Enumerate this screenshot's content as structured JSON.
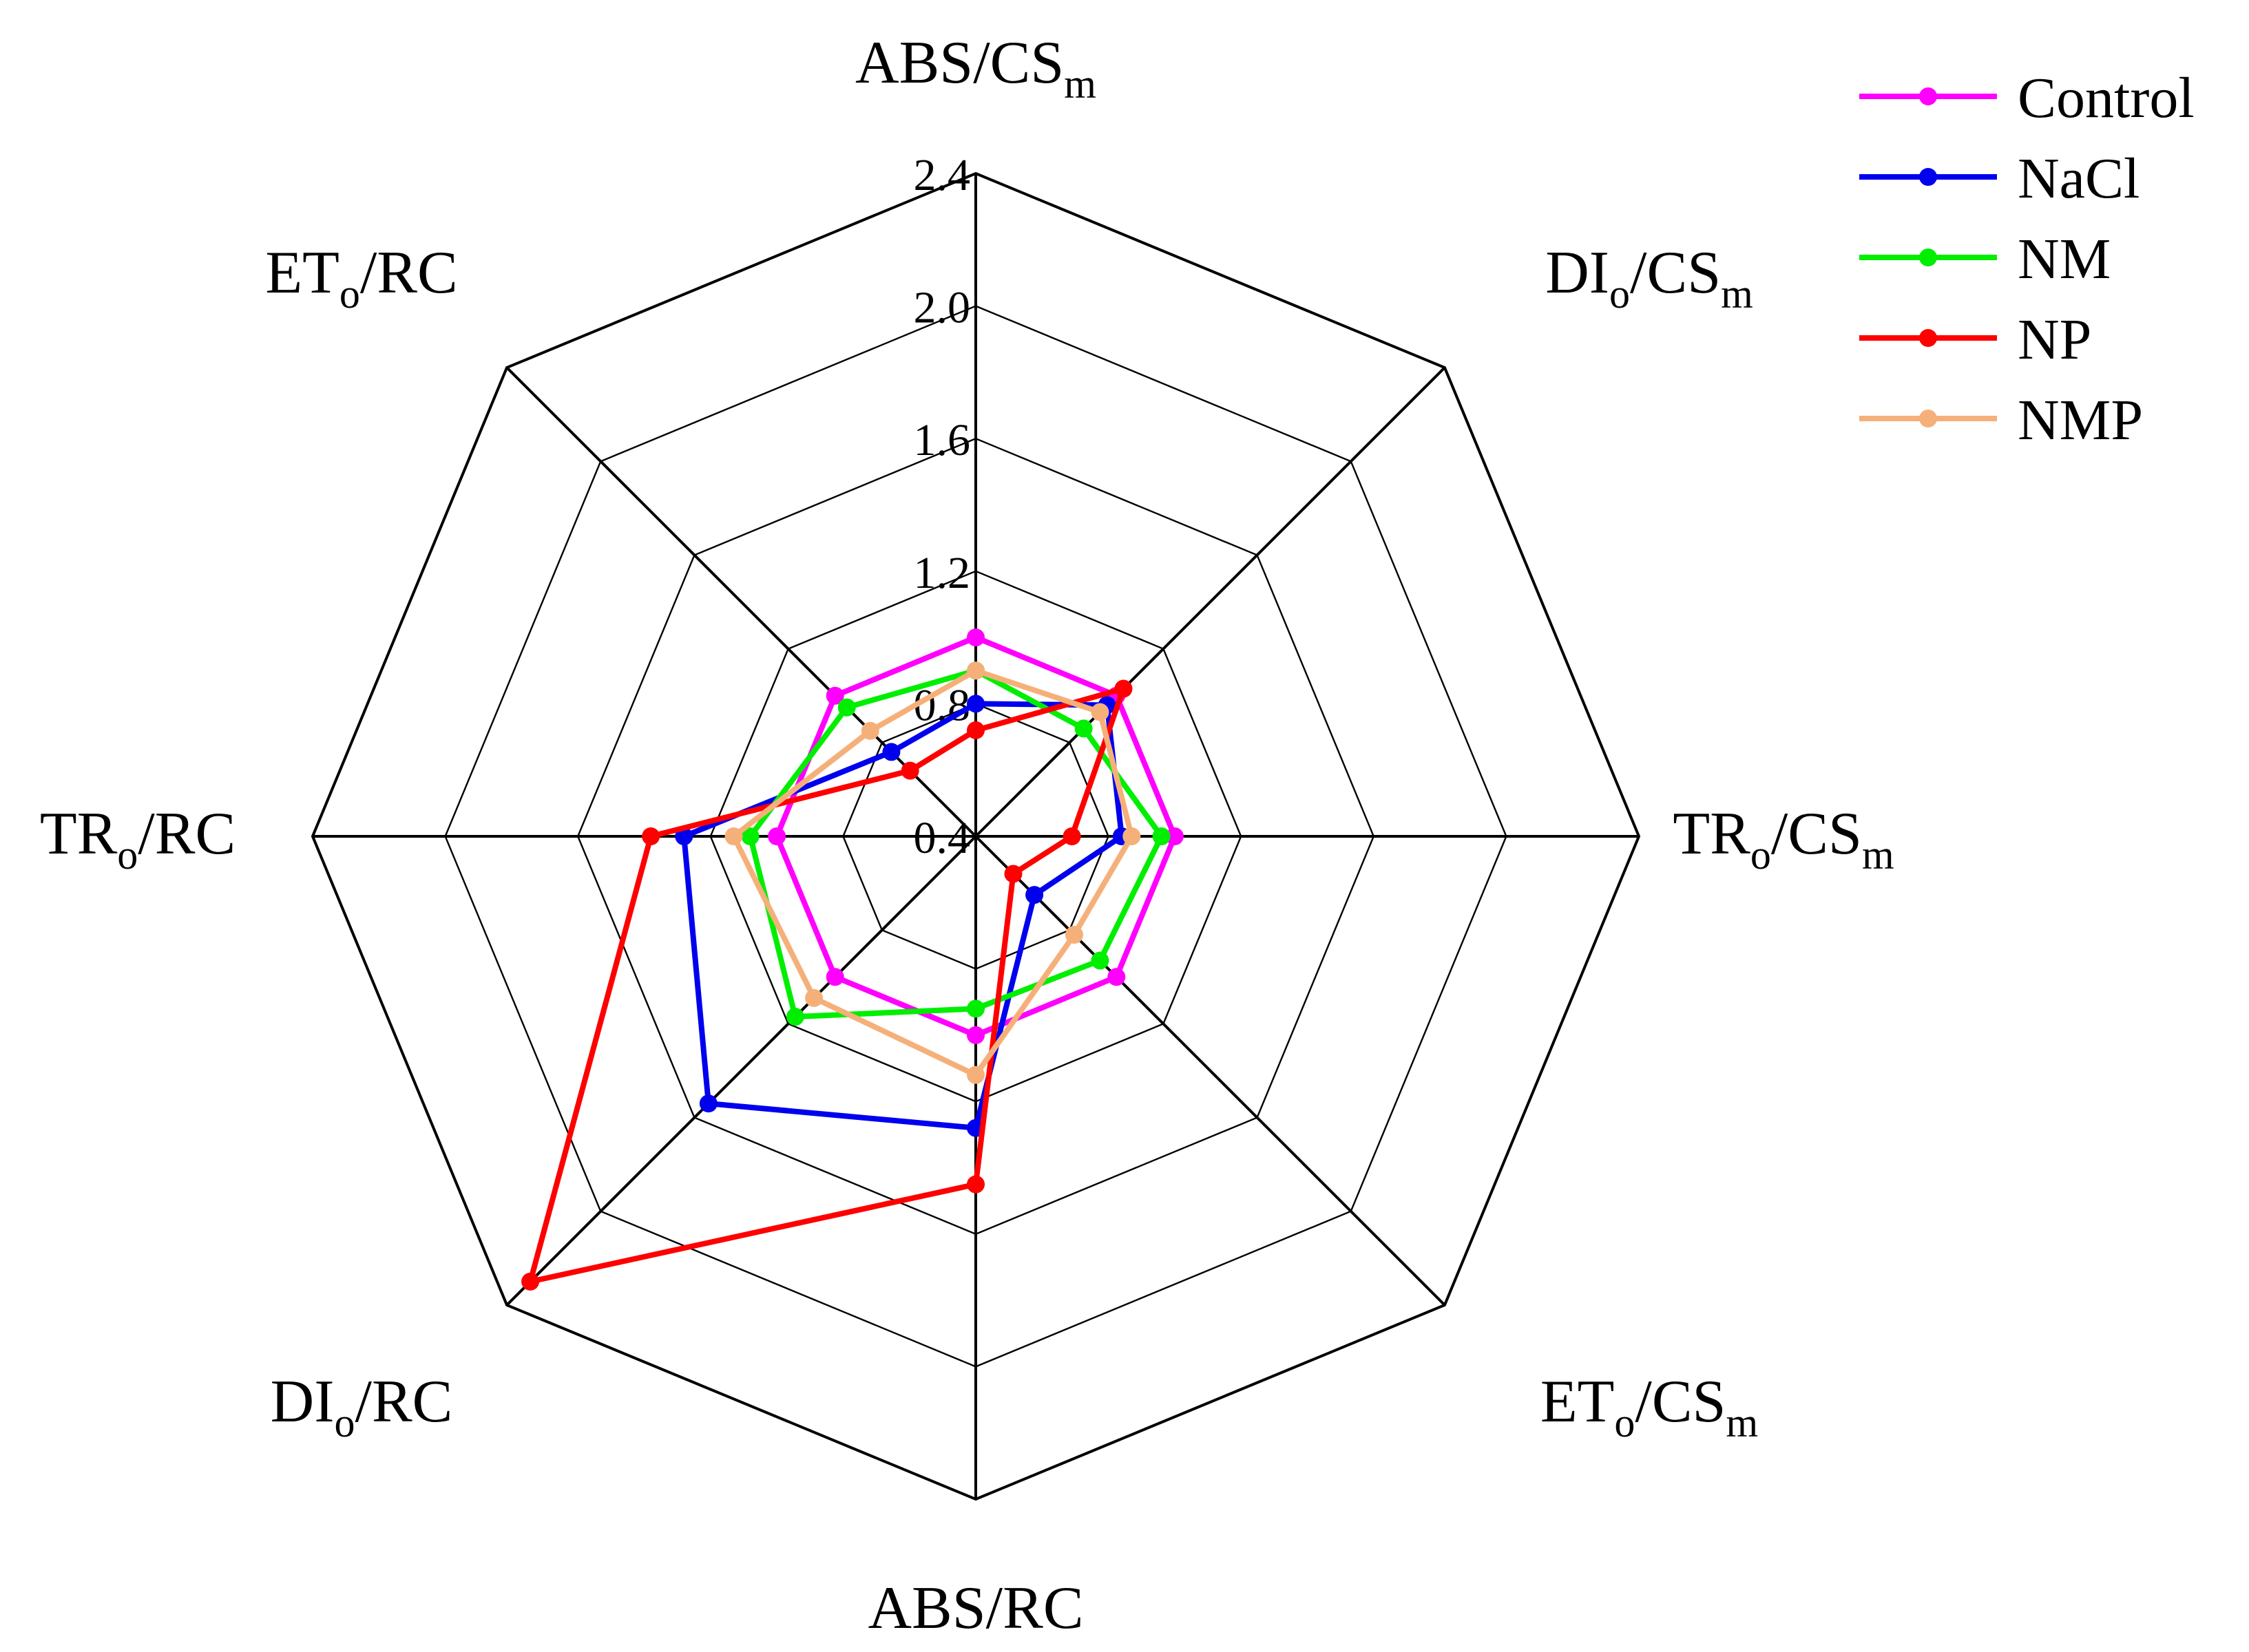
{
  "chart_data": {
    "type": "radar",
    "title": "",
    "axes": [
      {
        "base": "ABS/CS",
        "sub": "m"
      },
      {
        "base": "DI",
        "sub": "o",
        "suffix": "/CS",
        "sub2": "m"
      },
      {
        "base": "TR",
        "sub": "o",
        "suffix": "/CS",
        "sub2": "m"
      },
      {
        "base": "ET",
        "sub": "o",
        "suffix": "/CS",
        "sub2": "m"
      },
      {
        "base": "ABS/RC"
      },
      {
        "base": "DI",
        "sub": "o",
        "suffix": "/RC"
      },
      {
        "base": "TR",
        "sub": "o",
        "suffix": "/RC"
      },
      {
        "base": "ET",
        "sub": "o",
        "suffix": "/RC"
      }
    ],
    "radial_range": [
      0.4,
      2.4
    ],
    "ticks": [
      0.4,
      0.8,
      1.2,
      1.6,
      2.0,
      2.4
    ],
    "tick_labels": [
      "0.4",
      "0.8",
      "1.2",
      "1.6",
      "2.0",
      "2.4"
    ],
    "grid": true,
    "legend_position": "top-right",
    "series": [
      {
        "name": "Control",
        "color": "#ff00ff",
        "values": [
          1.0,
          1.0,
          1.0,
          1.0,
          1.0,
          1.0,
          1.0,
          1.0
        ]
      },
      {
        "name": "NaCl",
        "color": "#0000ee",
        "values": [
          0.8,
          0.96,
          0.84,
          0.65,
          1.28,
          1.54,
          1.28,
          0.76
        ]
      },
      {
        "name": "NM",
        "color": "#00ee00",
        "values": [
          0.9,
          0.86,
          0.96,
          0.93,
          0.92,
          1.17,
          1.08,
          0.95
        ]
      },
      {
        "name": "NP",
        "color": "#ff0000",
        "values": [
          0.72,
          1.03,
          0.69,
          0.56,
          1.45,
          2.3,
          1.38,
          0.68
        ]
      },
      {
        "name": "NMP",
        "color": "#f5b07a",
        "values": [
          0.9,
          0.93,
          0.87,
          0.82,
          1.12,
          1.09,
          1.13,
          0.85
        ]
      }
    ]
  }
}
